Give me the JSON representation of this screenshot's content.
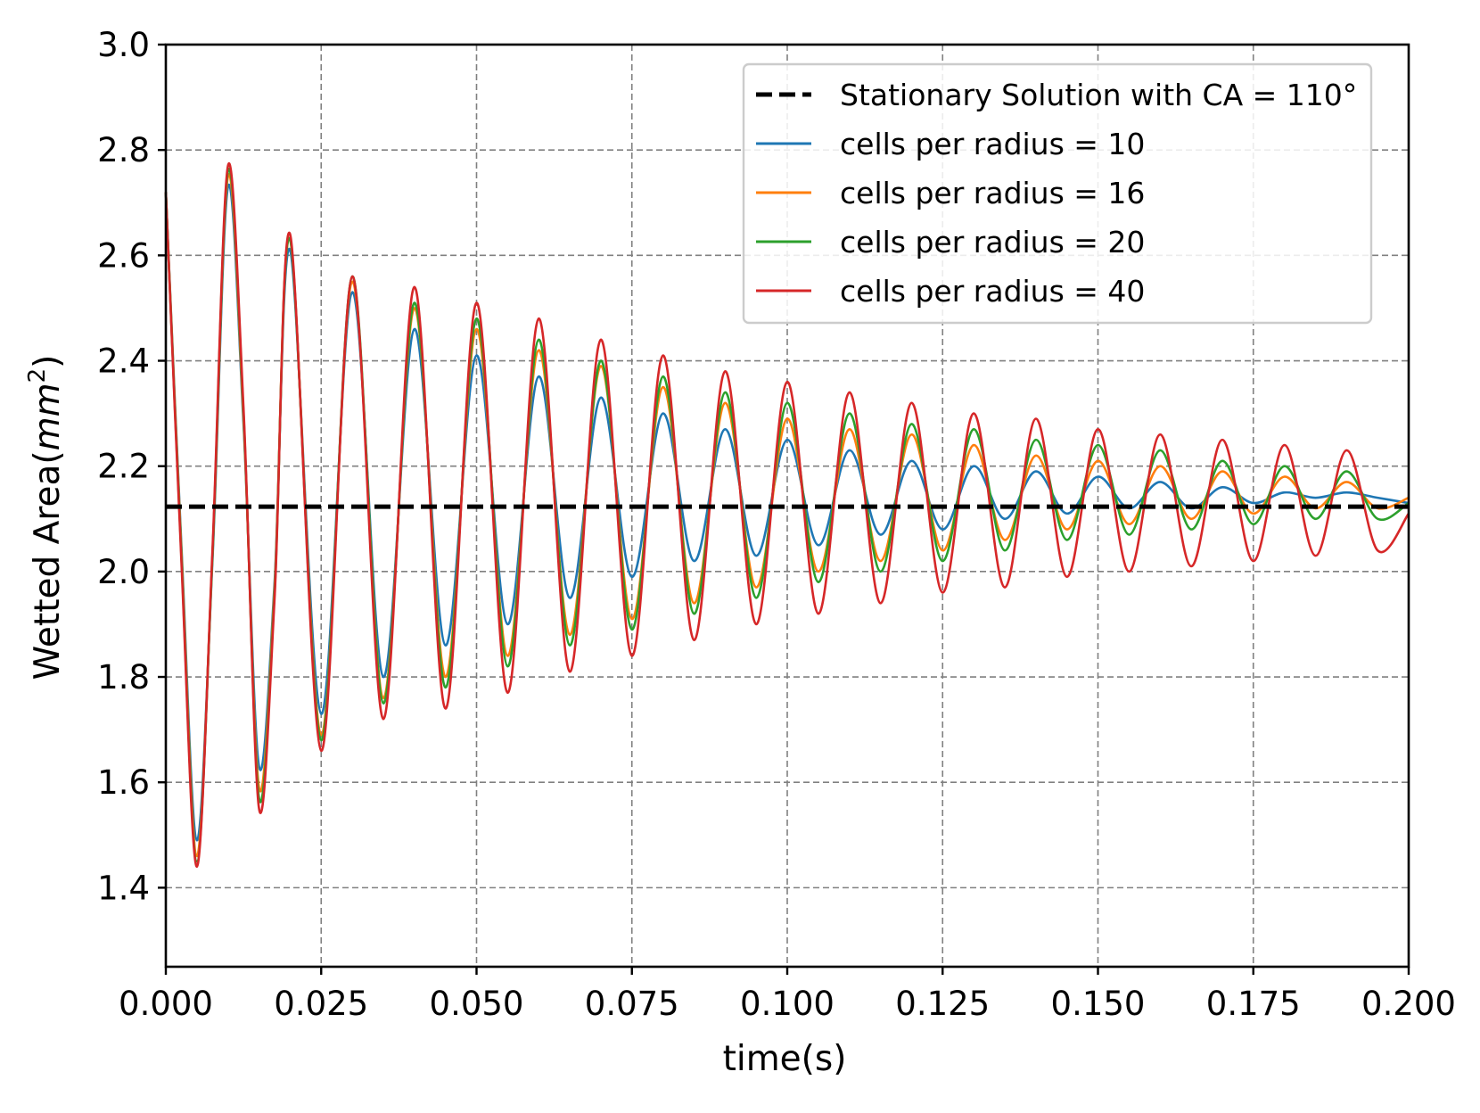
{
  "chart_data": {
    "type": "line",
    "title": "",
    "xlabel": "time(s)",
    "ylabel": "Wetted Area(",
    "ylabel_math": "mm",
    "ylabel_sup": "2",
    "ylabel_close": ")",
    "xlim": [
      0.0,
      0.2
    ],
    "ylim": [
      1.25,
      3.0
    ],
    "x_ticks": [
      "0.000",
      "0.025",
      "0.050",
      "0.075",
      "0.100",
      "0.125",
      "0.150",
      "0.175",
      "0.200"
    ],
    "x_tick_values": [
      0.0,
      0.025,
      0.05,
      0.075,
      0.1,
      0.125,
      0.15,
      0.175,
      0.2
    ],
    "y_ticks": [
      "1.4",
      "1.6",
      "1.8",
      "2.0",
      "2.2",
      "2.4",
      "2.6",
      "2.8",
      "3.0"
    ],
    "y_tick_values": [
      1.4,
      1.6,
      1.8,
      2.0,
      2.2,
      2.4,
      2.6,
      2.8,
      3.0
    ],
    "grid": true,
    "legend_position": "top-right",
    "reference_line": {
      "name": "Stationary Solution with CA = 110°",
      "value": 2.123,
      "color": "#000000",
      "style": "dashed"
    },
    "series": [
      {
        "name": "cells per radius = 10",
        "color": "#1f77b4",
        "x": [
          0.0,
          0.0025,
          0.005,
          0.0075,
          0.01,
          0.0125,
          0.015,
          0.0175,
          0.02,
          0.025,
          0.03,
          0.035,
          0.04,
          0.045,
          0.05,
          0.055,
          0.06,
          0.065,
          0.07,
          0.075,
          0.08,
          0.085,
          0.09,
          0.095,
          0.1,
          0.105,
          0.11,
          0.115,
          0.12,
          0.125,
          0.13,
          0.135,
          0.14,
          0.145,
          0.15,
          0.155,
          0.16,
          0.165,
          0.17,
          0.175,
          0.18,
          0.185,
          0.19,
          0.195,
          0.2
        ],
        "y": [
          2.72,
          2.05,
          1.49,
          2.02,
          2.73,
          2.28,
          1.63,
          1.98,
          2.61,
          1.73,
          2.53,
          1.8,
          2.46,
          1.86,
          2.41,
          1.9,
          2.37,
          1.95,
          2.33,
          1.99,
          2.3,
          2.02,
          2.27,
          2.03,
          2.25,
          2.05,
          2.23,
          2.07,
          2.21,
          2.08,
          2.2,
          2.1,
          2.19,
          2.11,
          2.18,
          2.12,
          2.17,
          2.12,
          2.16,
          2.13,
          2.15,
          2.14,
          2.15,
          2.14,
          2.13
        ]
      },
      {
        "name": "cells per radius = 16",
        "color": "#ff7f0e",
        "x": [
          0.0,
          0.0025,
          0.005,
          0.0075,
          0.01,
          0.0125,
          0.015,
          0.0175,
          0.02,
          0.025,
          0.03,
          0.035,
          0.04,
          0.045,
          0.05,
          0.055,
          0.06,
          0.065,
          0.07,
          0.075,
          0.08,
          0.085,
          0.09,
          0.095,
          0.1,
          0.105,
          0.11,
          0.115,
          0.12,
          0.125,
          0.13,
          0.135,
          0.14,
          0.145,
          0.15,
          0.155,
          0.16,
          0.165,
          0.17,
          0.175,
          0.18,
          0.185,
          0.19,
          0.195,
          0.2
        ],
        "y": [
          2.72,
          2.04,
          1.46,
          2.03,
          2.75,
          2.29,
          1.59,
          1.97,
          2.63,
          1.69,
          2.55,
          1.76,
          2.5,
          1.8,
          2.46,
          1.84,
          2.42,
          1.88,
          2.39,
          1.91,
          2.35,
          1.94,
          2.32,
          1.97,
          2.29,
          2.0,
          2.27,
          2.02,
          2.26,
          2.04,
          2.24,
          2.06,
          2.22,
          2.08,
          2.21,
          2.09,
          2.2,
          2.1,
          2.19,
          2.11,
          2.18,
          2.12,
          2.17,
          2.12,
          2.14
        ]
      },
      {
        "name": "cells per radius = 20",
        "color": "#2ca02c",
        "x": [
          0.0,
          0.0025,
          0.005,
          0.0075,
          0.01,
          0.0125,
          0.015,
          0.0175,
          0.02,
          0.025,
          0.03,
          0.035,
          0.04,
          0.045,
          0.05,
          0.055,
          0.06,
          0.065,
          0.07,
          0.075,
          0.08,
          0.085,
          0.09,
          0.095,
          0.1,
          0.105,
          0.11,
          0.115,
          0.12,
          0.125,
          0.13,
          0.135,
          0.14,
          0.145,
          0.15,
          0.155,
          0.16,
          0.165,
          0.17,
          0.175,
          0.18,
          0.185,
          0.19,
          0.195,
          0.2
        ],
        "y": [
          2.72,
          2.03,
          1.45,
          2.03,
          2.76,
          2.3,
          1.57,
          1.96,
          2.63,
          1.68,
          2.56,
          1.75,
          2.51,
          1.78,
          2.48,
          1.82,
          2.44,
          1.86,
          2.4,
          1.89,
          2.37,
          1.92,
          2.34,
          1.95,
          2.32,
          1.98,
          2.3,
          2.0,
          2.28,
          2.02,
          2.27,
          2.04,
          2.25,
          2.06,
          2.24,
          2.07,
          2.23,
          2.08,
          2.21,
          2.09,
          2.2,
          2.1,
          2.19,
          2.1,
          2.13
        ]
      },
      {
        "name": "cells per radius = 40",
        "color": "#d62728",
        "x": [
          0.0,
          0.0025,
          0.005,
          0.0075,
          0.01,
          0.0125,
          0.015,
          0.0175,
          0.02,
          0.025,
          0.03,
          0.035,
          0.04,
          0.045,
          0.05,
          0.055,
          0.06,
          0.065,
          0.07,
          0.075,
          0.08,
          0.085,
          0.09,
          0.095,
          0.1,
          0.105,
          0.11,
          0.115,
          0.12,
          0.125,
          0.13,
          0.135,
          0.14,
          0.145,
          0.15,
          0.155,
          0.16,
          0.165,
          0.17,
          0.175,
          0.18,
          0.185,
          0.19,
          0.195,
          0.2
        ],
        "y": [
          2.72,
          2.02,
          1.44,
          2.04,
          2.77,
          2.31,
          1.55,
          1.95,
          2.64,
          1.66,
          2.56,
          1.72,
          2.54,
          1.74,
          2.51,
          1.77,
          2.48,
          1.81,
          2.44,
          1.84,
          2.41,
          1.87,
          2.38,
          1.9,
          2.36,
          1.92,
          2.34,
          1.94,
          2.32,
          1.96,
          2.3,
          1.97,
          2.29,
          1.99,
          2.27,
          2.0,
          2.26,
          2.01,
          2.25,
          2.02,
          2.24,
          2.03,
          2.23,
          2.04,
          2.11
        ]
      }
    ]
  }
}
